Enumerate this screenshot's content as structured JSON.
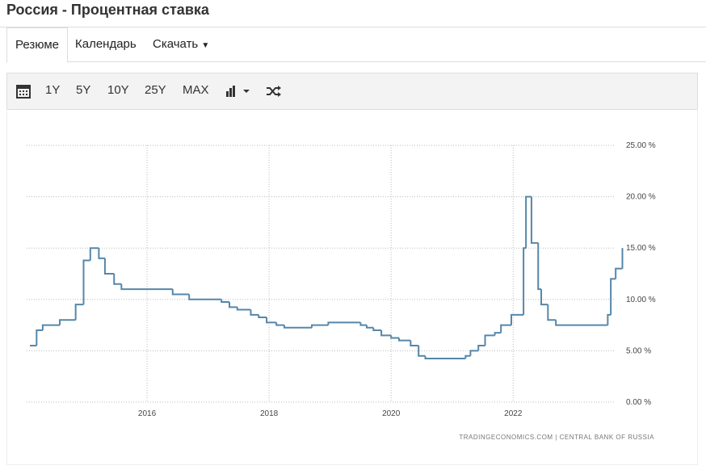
{
  "header": {
    "title": "Россия - Процентная ставка"
  },
  "tabs": [
    "Резюме",
    "Календарь",
    "Скачать"
  ],
  "toolbar": [
    "1Y",
    "5Y",
    "10Y",
    "25Y",
    "MAX"
  ],
  "chart_data": {
    "type": "step",
    "source": "TRADINGECONOMICS.COM  |  CENTRAL BANK OF RUSSIA",
    "x": [
      2014.08,
      2014.19,
      2014.29,
      2014.57,
      2014.83,
      2014.96,
      2015.07,
      2015.21,
      2015.31,
      2015.46,
      2015.58,
      2016.42,
      2016.69,
      2017.22,
      2017.35,
      2017.48,
      2017.7,
      2017.83,
      2017.96,
      2018.12,
      2018.25,
      2018.7,
      2018.97,
      2019.5,
      2019.6,
      2019.71,
      2019.84,
      2020.0,
      2020.13,
      2020.32,
      2020.45,
      2020.56,
      2021.22,
      2021.3,
      2021.43,
      2021.54,
      2021.7,
      2021.8,
      2021.97,
      2022.17,
      2022.21,
      2022.3,
      2022.41,
      2022.46,
      2022.57,
      2022.7,
      2023.55,
      2023.6,
      2023.68,
      2023.79
    ],
    "series": [
      {
        "name": "Interest Rate",
        "color": "#5587a9",
        "values": [
          5.5,
          7.0,
          7.5,
          8.0,
          9.5,
          13.8,
          15.0,
          14.0,
          12.5,
          11.5,
          11.0,
          10.5,
          10.0,
          9.75,
          9.25,
          9.0,
          8.5,
          8.25,
          7.75,
          7.5,
          7.25,
          7.5,
          7.75,
          7.5,
          7.25,
          7.0,
          6.5,
          6.25,
          6.0,
          5.5,
          4.5,
          4.25,
          4.5,
          5.0,
          5.5,
          6.5,
          6.75,
          7.5,
          8.5,
          15.0,
          20.0,
          15.5,
          11.0,
          9.5,
          8.0,
          7.5,
          8.5,
          12.0,
          13.0,
          15.0
        ]
      }
    ],
    "xlim": [
      2014.08,
      2023.81
    ],
    "xticks": [
      2016,
      2018,
      2020,
      2022
    ],
    "ylim": [
      0,
      25
    ],
    "yticks": [
      {
        "value": 0,
        "label": "0.00 %"
      },
      {
        "value": 5,
        "label": "5.00 %"
      },
      {
        "value": 10,
        "label": "10.00 %"
      },
      {
        "value": 15,
        "label": "15.00 %"
      },
      {
        "value": 20,
        "label": "20.00 %"
      },
      {
        "value": 25,
        "label": "25.00 %"
      }
    ],
    "grid": true
  }
}
